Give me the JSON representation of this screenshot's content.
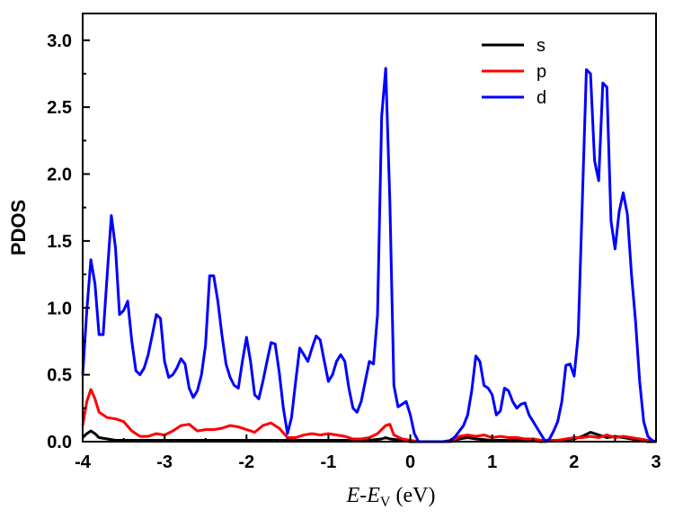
{
  "chart_data": {
    "type": "line",
    "xlabel": {
      "e": "E",
      "dash": "-",
      "ev": "E",
      "sub": "V",
      "unit": " (eV)"
    },
    "ylabel": "PDOS",
    "xlim": [
      -4,
      3
    ],
    "ylim": [
      0,
      3.2
    ],
    "xticks": [
      -4,
      -3,
      -2,
      -1,
      0,
      1,
      2,
      3
    ],
    "xtick_labels": [
      "-4",
      "-3",
      "-2",
      "-1",
      "0",
      "1",
      "2",
      "3"
    ],
    "yticks": [
      0,
      0.5,
      1.0,
      1.5,
      2.0,
      2.5,
      3.0
    ],
    "ytick_labels": [
      "0.0",
      "0.5",
      "1.0",
      "1.5",
      "2.0",
      "2.5",
      "3.0"
    ],
    "legend_position": "top-right",
    "series": [
      {
        "name": "s",
        "color": "#000000",
        "x": [
          -4.0,
          -3.95,
          -3.9,
          -3.85,
          -3.8,
          -3.7,
          -3.6,
          -3.5,
          -3.0,
          -2.5,
          -2.0,
          -1.5,
          -1.0,
          -0.5,
          -0.35,
          -0.3,
          -0.25,
          -0.1,
          0.0,
          0.5,
          0.6,
          0.7,
          0.8,
          1.0,
          1.2,
          1.4,
          1.6,
          1.8,
          2.0,
          2.1,
          2.2,
          2.3,
          2.4,
          2.5,
          2.6,
          2.7,
          2.8,
          2.9,
          3.0
        ],
        "values": [
          0.03,
          0.06,
          0.08,
          0.06,
          0.03,
          0.02,
          0.01,
          0.01,
          0.01,
          0.01,
          0.01,
          0.01,
          0.01,
          0.01,
          0.02,
          0.03,
          0.02,
          0.01,
          0.0,
          0.0,
          0.02,
          0.03,
          0.02,
          0.01,
          0.01,
          0.01,
          0.0,
          0.01,
          0.02,
          0.04,
          0.07,
          0.05,
          0.03,
          0.04,
          0.03,
          0.02,
          0.01,
          0.0,
          0.0
        ]
      },
      {
        "name": "p",
        "color": "#ff0000",
        "x": [
          -4.0,
          -3.95,
          -3.9,
          -3.85,
          -3.8,
          -3.7,
          -3.6,
          -3.5,
          -3.4,
          -3.3,
          -3.2,
          -3.1,
          -3.0,
          -2.9,
          -2.8,
          -2.7,
          -2.6,
          -2.5,
          -2.4,
          -2.3,
          -2.2,
          -2.1,
          -2.0,
          -1.9,
          -1.8,
          -1.7,
          -1.6,
          -1.5,
          -1.4,
          -1.3,
          -1.2,
          -1.1,
          -1.0,
          -0.9,
          -0.8,
          -0.7,
          -0.6,
          -0.5,
          -0.4,
          -0.3,
          -0.25,
          -0.2,
          -0.1,
          0.0,
          0.1,
          0.3,
          0.5,
          0.6,
          0.7,
          0.8,
          0.9,
          1.0,
          1.1,
          1.2,
          1.3,
          1.4,
          1.5,
          1.6,
          1.7,
          1.8,
          1.9,
          2.0,
          2.1,
          2.2,
          2.3,
          2.4,
          2.5,
          2.6,
          2.7,
          2.8,
          2.9,
          3.0
        ],
        "values": [
          0.12,
          0.3,
          0.39,
          0.32,
          0.22,
          0.18,
          0.17,
          0.15,
          0.08,
          0.04,
          0.04,
          0.06,
          0.05,
          0.08,
          0.12,
          0.13,
          0.08,
          0.09,
          0.09,
          0.1,
          0.12,
          0.11,
          0.09,
          0.07,
          0.12,
          0.14,
          0.1,
          0.03,
          0.03,
          0.05,
          0.06,
          0.05,
          0.06,
          0.05,
          0.04,
          0.02,
          0.02,
          0.03,
          0.06,
          0.12,
          0.13,
          0.05,
          0.02,
          0.01,
          0.0,
          0.0,
          0.0,
          0.04,
          0.05,
          0.04,
          0.05,
          0.03,
          0.04,
          0.03,
          0.03,
          0.02,
          0.02,
          0.01,
          0.01,
          0.01,
          0.02,
          0.03,
          0.03,
          0.04,
          0.03,
          0.05,
          0.03,
          0.04,
          0.03,
          0.02,
          0.01,
          0.0
        ]
      },
      {
        "name": "d",
        "color": "#0000ff",
        "x": [
          -4.0,
          -3.95,
          -3.9,
          -3.85,
          -3.8,
          -3.75,
          -3.7,
          -3.65,
          -3.6,
          -3.55,
          -3.5,
          -3.45,
          -3.4,
          -3.35,
          -3.3,
          -3.25,
          -3.2,
          -3.15,
          -3.1,
          -3.05,
          -3.0,
          -2.95,
          -2.9,
          -2.85,
          -2.8,
          -2.75,
          -2.7,
          -2.65,
          -2.6,
          -2.55,
          -2.5,
          -2.45,
          -2.4,
          -2.35,
          -2.3,
          -2.25,
          -2.2,
          -2.15,
          -2.1,
          -2.05,
          -2.0,
          -1.95,
          -1.9,
          -1.85,
          -1.8,
          -1.75,
          -1.7,
          -1.65,
          -1.6,
          -1.55,
          -1.5,
          -1.45,
          -1.4,
          -1.35,
          -1.3,
          -1.25,
          -1.2,
          -1.15,
          -1.1,
          -1.05,
          -1.0,
          -0.95,
          -0.9,
          -0.85,
          -0.8,
          -0.75,
          -0.7,
          -0.65,
          -0.6,
          -0.55,
          -0.5,
          -0.45,
          -0.4,
          -0.35,
          -0.3,
          -0.25,
          -0.2,
          -0.15,
          -0.1,
          -0.05,
          0.0,
          0.05,
          0.1,
          0.15,
          0.2,
          0.3,
          0.4,
          0.5,
          0.55,
          0.6,
          0.65,
          0.7,
          0.75,
          0.8,
          0.85,
          0.9,
          0.95,
          1.0,
          1.05,
          1.1,
          1.15,
          1.2,
          1.25,
          1.3,
          1.35,
          1.4,
          1.45,
          1.5,
          1.55,
          1.6,
          1.65,
          1.7,
          1.75,
          1.8,
          1.85,
          1.9,
          1.95,
          2.0,
          2.05,
          2.1,
          2.15,
          2.2,
          2.25,
          2.3,
          2.35,
          2.4,
          2.45,
          2.5,
          2.55,
          2.6,
          2.65,
          2.7,
          2.75,
          2.8,
          2.85,
          2.9,
          2.95,
          3.0
        ],
        "values": [
          0.5,
          0.98,
          1.36,
          1.18,
          0.8,
          0.8,
          1.25,
          1.69,
          1.45,
          0.95,
          0.98,
          1.05,
          0.75,
          0.53,
          0.5,
          0.55,
          0.65,
          0.8,
          0.95,
          0.92,
          0.6,
          0.48,
          0.5,
          0.55,
          0.62,
          0.58,
          0.4,
          0.33,
          0.38,
          0.5,
          0.72,
          1.24,
          1.24,
          1.05,
          0.8,
          0.58,
          0.48,
          0.42,
          0.4,
          0.6,
          0.78,
          0.6,
          0.35,
          0.32,
          0.45,
          0.6,
          0.74,
          0.73,
          0.52,
          0.25,
          0.06,
          0.18,
          0.45,
          0.7,
          0.65,
          0.6,
          0.7,
          0.79,
          0.76,
          0.6,
          0.45,
          0.5,
          0.6,
          0.65,
          0.6,
          0.4,
          0.25,
          0.22,
          0.3,
          0.45,
          0.6,
          0.58,
          0.95,
          2.43,
          2.79,
          1.8,
          0.42,
          0.26,
          0.28,
          0.3,
          0.2,
          0.06,
          0.0,
          0.0,
          0.0,
          0.0,
          0.0,
          0.01,
          0.04,
          0.08,
          0.12,
          0.2,
          0.38,
          0.64,
          0.6,
          0.42,
          0.4,
          0.35,
          0.2,
          0.23,
          0.4,
          0.38,
          0.3,
          0.25,
          0.28,
          0.29,
          0.2,
          0.15,
          0.1,
          0.05,
          0.0,
          0.02,
          0.08,
          0.15,
          0.3,
          0.57,
          0.58,
          0.49,
          0.8,
          1.8,
          2.78,
          2.75,
          2.1,
          1.95,
          2.68,
          2.65,
          1.65,
          1.44,
          1.72,
          1.86,
          1.7,
          1.25,
          0.9,
          0.45,
          0.15,
          0.04,
          0.01,
          0.0
        ]
      }
    ]
  }
}
